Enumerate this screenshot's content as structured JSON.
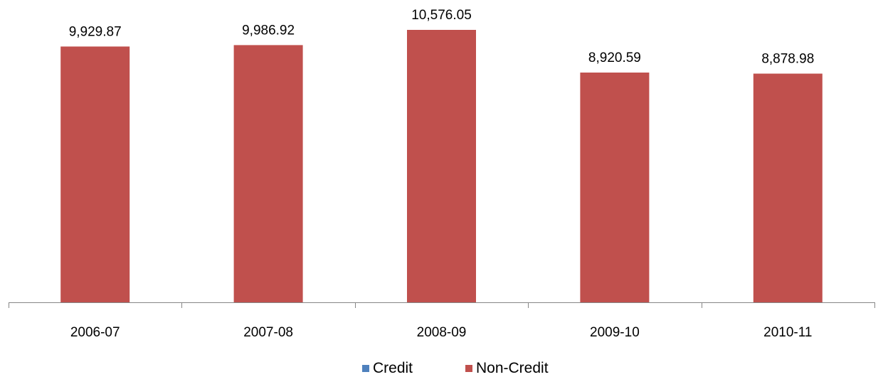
{
  "chart_data": {
    "type": "bar",
    "categories": [
      "2006-07",
      "2007-08",
      "2008-09",
      "2009-10",
      "2010-11"
    ],
    "series": [
      {
        "name": "Credit",
        "color": "#4F81BD",
        "values": [
          0,
          0,
          0,
          0,
          0
        ]
      },
      {
        "name": "Non-Credit",
        "color": "#C0504D",
        "values": [
          9929.87,
          9986.92,
          10576.05,
          8920.59,
          8878.98
        ]
      }
    ],
    "data_labels": [
      "9,929.87",
      "9,986.92",
      "10,576.05",
      "8,920.59",
      "8,878.98"
    ],
    "title": "",
    "xlabel": "",
    "ylabel": "",
    "legend_position": "bottom",
    "grid": false
  }
}
